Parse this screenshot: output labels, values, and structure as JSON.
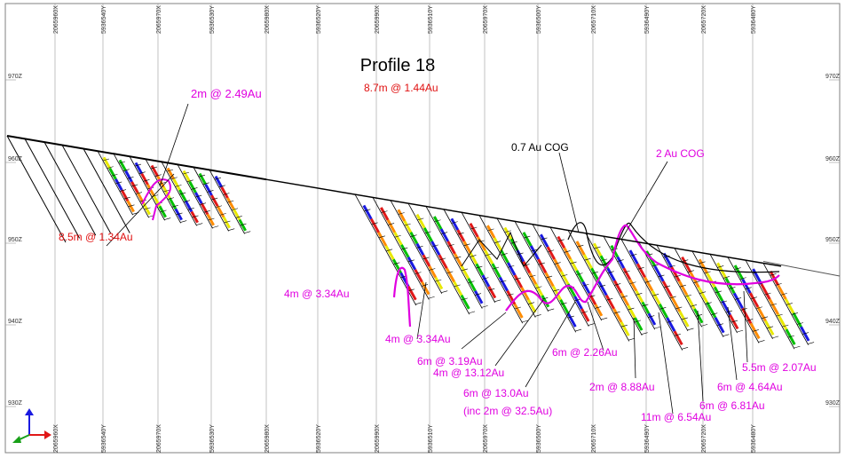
{
  "title": "Profile 18",
  "top_coords": [
    "2065960X",
    "5936540Y",
    "2065970X",
    "5936530Y",
    "2065980X",
    "5936520Y",
    "2065990X",
    "5936510Y",
    "2065970X",
    "5936500Y",
    "2065710X",
    "5936490Y",
    "2065720X",
    "5936480Y"
  ],
  "bottom_coords": [
    "2065960X",
    "5936540Y",
    "2065970X",
    "5936530Y",
    "2065980X",
    "5936520Y",
    "2065990X",
    "5936510Y",
    "2065970X",
    "5936500Y",
    "2065710X",
    "5936490Y",
    "2065720X",
    "5936480Y"
  ],
  "elevations": [
    "970Z",
    "960Z",
    "950Z",
    "940Z",
    "930Z"
  ],
  "annotations": [
    {
      "text": "2m @ 2.49Au",
      "color": "#e000e0"
    },
    {
      "text": "8.7m @ 1.44Au",
      "color": "#e01010"
    },
    {
      "text": "8.5m @ 1.34Au",
      "color": "#e01010"
    },
    {
      "text": "0.7 Au COG",
      "color": "#000000"
    },
    {
      "text": "2 Au COG",
      "color": "#e000e0"
    },
    {
      "text": "4m @ 3.34Au",
      "color": "#e000e0"
    },
    {
      "text": "4m @ 3.34Au",
      "color": "#e000e0"
    },
    {
      "text": "6m @ 3.19Au",
      "color": "#e000e0"
    },
    {
      "text": "4m @ 13.12Au",
      "color": "#e000e0"
    },
    {
      "text": "6m @ 2.26Au",
      "color": "#e000e0"
    },
    {
      "text": "6m @ 13.0Au",
      "color": "#e000e0"
    },
    {
      "text": "(inc 2m @ 32.5Au)",
      "color": "#e000e0"
    },
    {
      "text": "2m @ 8.88Au",
      "color": "#e000e0"
    },
    {
      "text": "11m @ 6.54Au",
      "color": "#e000e0"
    },
    {
      "text": "6m @ 6.81Au",
      "color": "#e000e0"
    },
    {
      "text": "6m @ 4.64Au",
      "color": "#e000e0"
    },
    {
      "text": "5.5m @ 2.07Au",
      "color": "#e000e0"
    }
  ],
  "colors": {
    "surface": "#000000",
    "cog_low": "#000000",
    "cog_high": "#e000e0",
    "grid": "#9a9a9a",
    "assay_bands": [
      "#e8e800",
      "#00c000",
      "#1818e0",
      "#e01818",
      "#ff8c00"
    ]
  }
}
